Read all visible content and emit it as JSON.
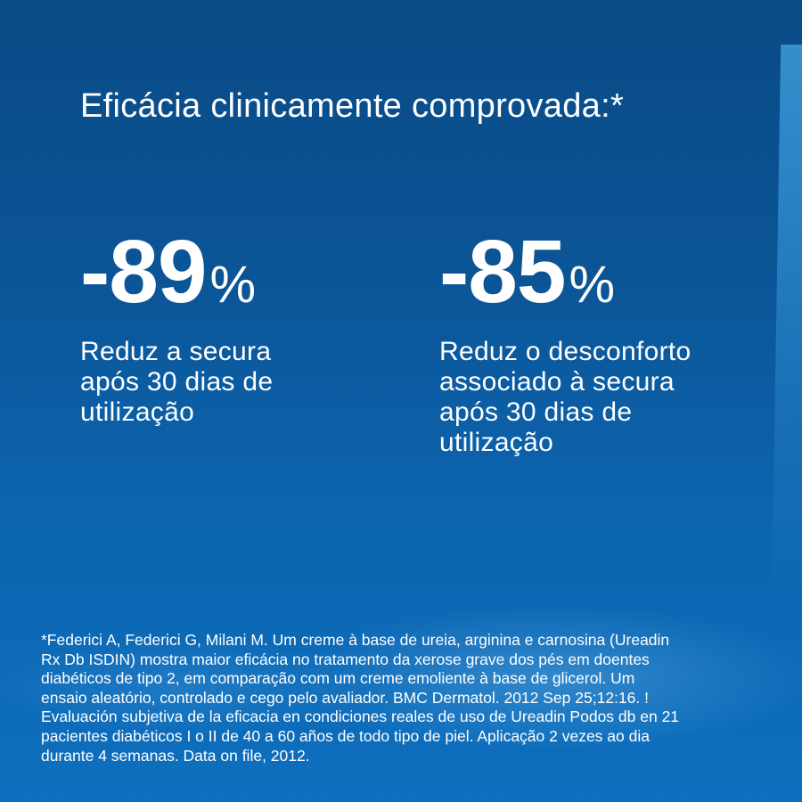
{
  "title": "Eficácia clinicamente comprovada:*",
  "stats": [
    {
      "value": "-89",
      "unit": "%",
      "description_lines": [
        "Reduz a secura",
        "após 30 dias de",
        "utilização"
      ]
    },
    {
      "value": "-85",
      "unit": "%",
      "description_lines": [
        "Reduz o desconforto",
        "associado à secura",
        "após 30 dias de",
        "utilização"
      ]
    }
  ],
  "footnote_lines": [
    "*Federici A, Federici G, Milani M. Um creme à base de ureia, arginina e carnosina (Ureadin",
    "Rx Db ISDIN) mostra maior eficácia no tratamento da xerose grave dos pés em doentes",
    "diabéticos de tipo 2, em comparação com um creme emoliente à base de glicerol. Um",
    "ensaio aleatório, controlado e cego pelo avaliador. BMC Dermatol. 2012 Sep 25;12:16. !",
    "Evaluación subjetiva de la eficacia en condiciones reales de uso de Ureadin Podos db en 21",
    "pacientes diabéticos I o II de 40 a 60 años de todo tipo de piel. Aplicação 2 vezes ao dia",
    "durante 4 semanas. Data on file, 2012."
  ],
  "colors": {
    "background_top": "#0a4a86",
    "background_bottom": "#0d6fbe",
    "text": "#ffffff"
  }
}
